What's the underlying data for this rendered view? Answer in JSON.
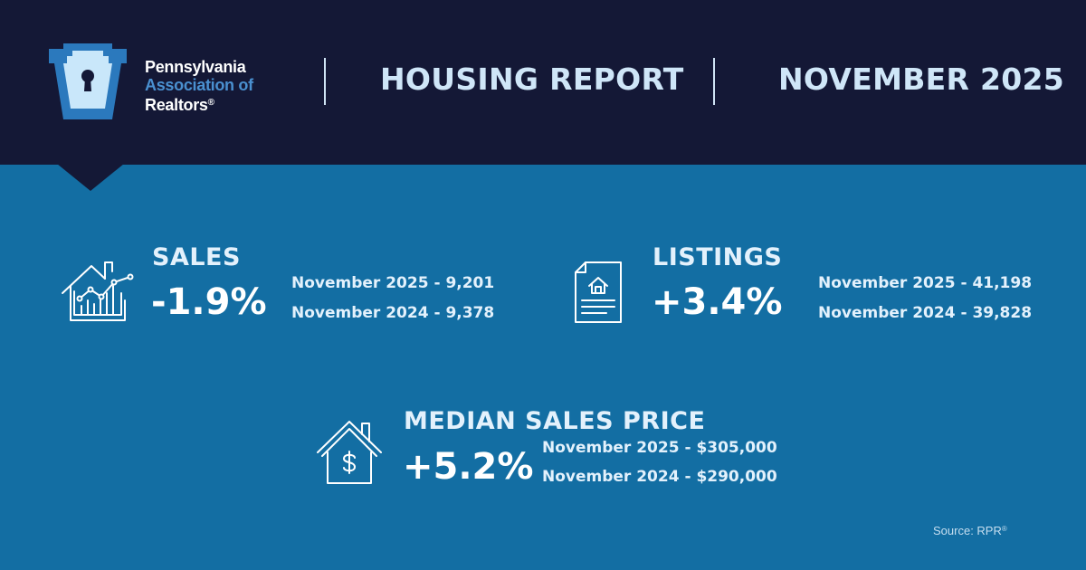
{
  "header": {
    "logo": {
      "line1": "Pennsylvania",
      "line2": "Association of",
      "line3": "Realtors",
      "line3_mark": "®"
    },
    "title": "HOUSING REPORT",
    "period": "NOVEMBER 2025"
  },
  "stats": {
    "sales": {
      "title": "SALES",
      "change": "-1.9%",
      "current": "November 2025 - 9,201",
      "previous": "November 2024 - 9,378",
      "icon": "house-chart-icon"
    },
    "listings": {
      "title": "LISTINGS",
      "change": "+3.4%",
      "current": "November 2025 - 41,198",
      "previous": "November 2024 - 39,828",
      "icon": "listing-document-icon"
    },
    "median_price": {
      "title": "MEDIAN SALES PRICE",
      "change": "+5.2%",
      "current": "November 2025 - $305,000",
      "previous": "November 2024 - $290,000",
      "icon": "house-dollar-icon"
    }
  },
  "footer": {
    "source": "Source: RPR",
    "source_mark": "®"
  },
  "colors": {
    "header_bg": "#141836",
    "body_bg": "#136ea3",
    "logo_blue": "#4a90d0",
    "text_light": "#e3f1fc"
  }
}
